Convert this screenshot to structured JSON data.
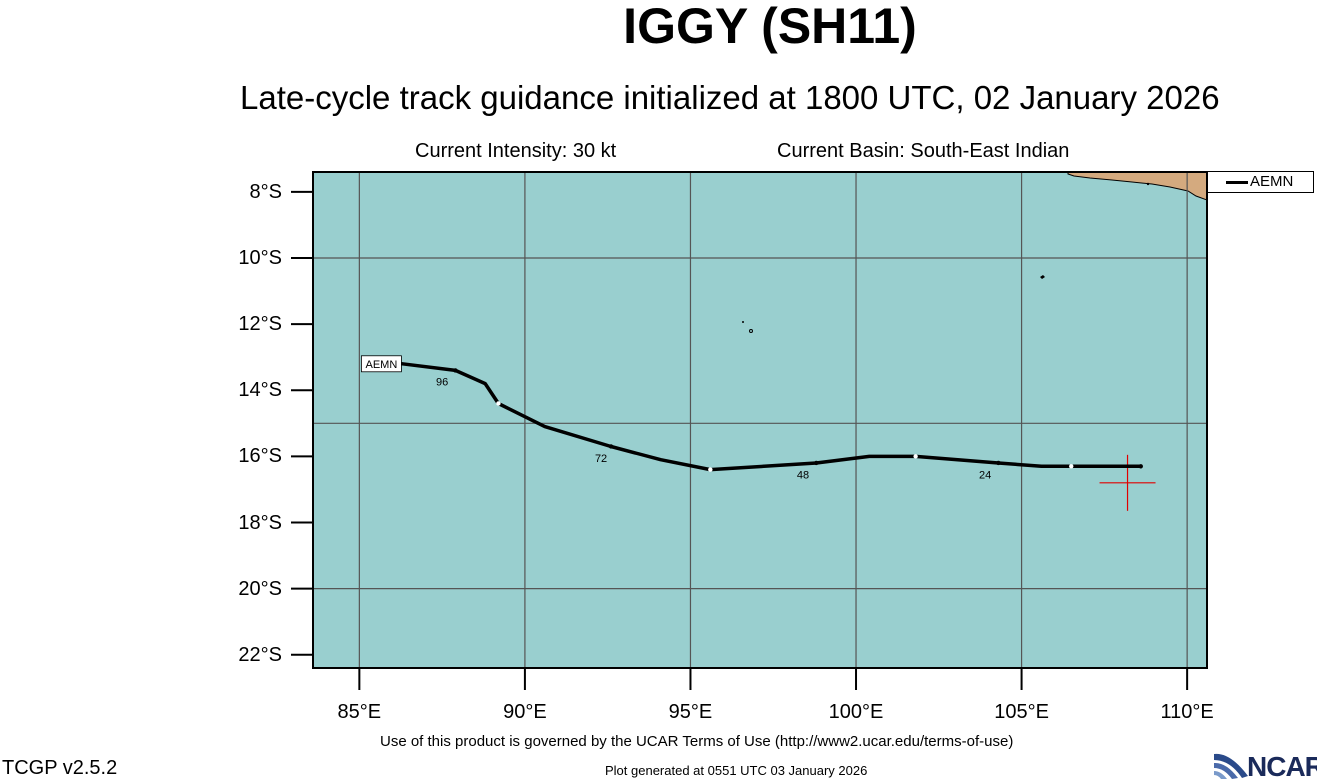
{
  "header": {
    "title": "IGGY (SH11)",
    "subtitle": "Late-cycle track guidance initialized at 1800 UTC, 02 January 2026",
    "current_intensity": "Current Intensity: 30 kt",
    "current_basin": "Current Basin: South-East Indian"
  },
  "map": {
    "lon_range": [
      83.6,
      110.6
    ],
    "lat_range": [
      -22.4,
      -7.4
    ],
    "lat_ticks": [
      {
        "value": -8,
        "label": "8°S"
      },
      {
        "value": -10,
        "label": "10°S"
      },
      {
        "value": -12,
        "label": "12°S"
      },
      {
        "value": -14,
        "label": "14°S"
      },
      {
        "value": -16,
        "label": "16°S"
      },
      {
        "value": -18,
        "label": "18°S"
      },
      {
        "value": -20,
        "label": "20°S"
      },
      {
        "value": -22,
        "label": "22°S"
      }
    ],
    "lon_ticks": [
      {
        "value": 85,
        "label": "85°E"
      },
      {
        "value": 90,
        "label": "90°E"
      },
      {
        "value": 95,
        "label": "95°E"
      },
      {
        "value": 100,
        "label": "100°E"
      },
      {
        "value": 105,
        "label": "105°E"
      },
      {
        "value": 110,
        "label": "110°E"
      }
    ],
    "grid_lons": [
      85,
      90,
      95,
      100,
      105,
      110
    ],
    "grid_lats": [
      -10,
      -15,
      -20
    ],
    "ocean_color": "#99cfcf",
    "land_color": "#d4aa7f",
    "current_position": {
      "lon": 108.2,
      "lat": -16.8,
      "color": "#e00000"
    }
  },
  "legend": {
    "entries": [
      {
        "name": "AEMN",
        "color": "#000000"
      }
    ]
  },
  "track": {
    "model": "AEMN",
    "points": [
      {
        "lon": 108.6,
        "lat": -16.3
      },
      {
        "lon": 106.5,
        "lat": -16.3
      },
      {
        "lon": 105.6,
        "lat": -16.3
      },
      {
        "lon": 104.3,
        "lat": -16.2
      },
      {
        "lon": 101.8,
        "lat": -16.0
      },
      {
        "lon": 100.4,
        "lat": -16.0
      },
      {
        "lon": 98.8,
        "lat": -16.2
      },
      {
        "lon": 95.6,
        "lat": -16.4
      },
      {
        "lon": 94.1,
        "lat": -16.1
      },
      {
        "lon": 92.6,
        "lat": -15.7
      },
      {
        "lon": 90.6,
        "lat": -15.1
      },
      {
        "lon": 89.2,
        "lat": -14.4
      },
      {
        "lon": 88.8,
        "lat": -13.8
      },
      {
        "lon": 87.9,
        "lat": -13.4
      },
      {
        "lon": 86.3,
        "lat": -13.2
      }
    ],
    "hour_labels": [
      {
        "label": "24",
        "lon": 103.9,
        "lat": -16.3
      },
      {
        "label": "48",
        "lon": 98.4,
        "lat": -16.3
      },
      {
        "label": "72",
        "lon": 92.3,
        "lat": -15.8
      },
      {
        "label": "96",
        "lon": 87.5,
        "lat": -13.5
      }
    ],
    "end_label": "AEMN"
  },
  "footer": {
    "terms": "Use of this product is governed by the UCAR Terms of Use (http://www2.ucar.edu/terms-of-use)",
    "version": "TCGP v2.5.2",
    "generated": "Plot generated at 0551 UTC   03 January 2026",
    "logo_text": "NCAR"
  }
}
